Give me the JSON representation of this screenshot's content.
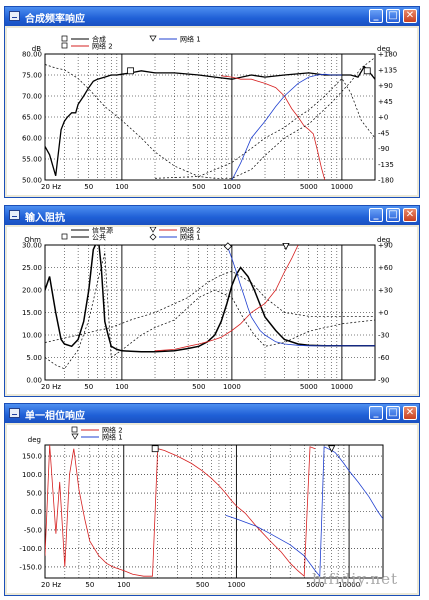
{
  "watermark": "hifidiy.net",
  "windows": [
    {
      "title": "合成频率响应",
      "buttons": [
        "minimize",
        "maximize",
        "close"
      ],
      "legend": [
        {
          "marker": "square",
          "label": "合成",
          "color": "#000000"
        },
        {
          "marker": "square",
          "label": "网络 2",
          "color": "#d62020"
        },
        {
          "marker": "triangle",
          "label": "网络 1",
          "color": "#2040d0"
        }
      ]
    },
    {
      "title": "输入阻抗",
      "buttons": [
        "minimize",
        "maximize",
        "close"
      ],
      "legend": [
        {
          "marker": "line",
          "label": "信号源",
          "color": "#000000"
        },
        {
          "marker": "square",
          "label": "公共",
          "color": "#000000"
        },
        {
          "marker": "triangle",
          "label": "网络 2",
          "color": "#d62020"
        },
        {
          "marker": "diamond",
          "label": "网络 1",
          "color": "#2040d0"
        }
      ]
    },
    {
      "title": "单一相位响应",
      "buttons": [
        "minimize",
        "maximize",
        "close"
      ],
      "legend": [
        {
          "marker": "square",
          "label": "网络 2",
          "color": "#d62020"
        },
        {
          "marker": "triangle",
          "label": "网络 1",
          "color": "#2040d0"
        }
      ]
    }
  ],
  "chart_data": [
    {
      "type": "line",
      "title": "合成频率响应",
      "xscale": "log",
      "xlim": [
        20,
        20000
      ],
      "xticks": [
        20,
        50,
        100,
        500,
        1000,
        5000,
        10000
      ],
      "xtick_labels": [
        "20 Hz",
        "50",
        "100",
        "500",
        "1000",
        "5000",
        "10000"
      ],
      "ylabel": "dB",
      "ylim": [
        50,
        80
      ],
      "yticks": [
        50,
        55,
        60,
        65,
        70,
        75,
        80
      ],
      "ytick_labels": [
        "50.00",
        "55.00",
        "60.00",
        "65.00",
        "70.00",
        "75.00",
        "80.00"
      ],
      "y2label": "deg",
      "y2lim": [
        -180,
        180
      ],
      "y2ticks": [
        -180,
        -135,
        -90,
        -45,
        0,
        45,
        90,
        135,
        180
      ],
      "y2tick_labels": [
        "-180",
        "-135",
        "-90",
        "-45",
        "+0",
        "+45",
        "+90",
        "+135",
        "+180"
      ],
      "grid": true,
      "series": [
        {
          "name": "合成",
          "color": "#000000",
          "style": "solid",
          "width": 1.3,
          "x": [
            20,
            22,
            25,
            28,
            30,
            32,
            35,
            38,
            40,
            45,
            50,
            55,
            60,
            70,
            80,
            90,
            100,
            120,
            150,
            200,
            300,
            500,
            700,
            1000,
            1500,
            2000,
            3000,
            5000,
            7000,
            10000,
            12000,
            14000,
            16000,
            18000,
            20000
          ],
          "y": [
            58,
            56,
            51,
            62,
            64,
            65,
            66,
            66,
            68,
            70,
            72,
            73.5,
            74,
            74.5,
            75,
            75,
            75.2,
            75.5,
            76,
            75.5,
            75.5,
            75,
            74.5,
            74,
            75,
            74.5,
            75,
            75.5,
            75,
            75,
            75,
            74.5,
            77,
            75.5,
            74
          ]
        },
        {
          "name": "网络 2",
          "color": "#d62020",
          "style": "solid",
          "width": 0.8,
          "x": [
            800,
            1000,
            1200,
            1500,
            2000,
            2500,
            3000,
            3500,
            4000,
            4500,
            5000,
            5500,
            6000,
            6500,
            7000
          ],
          "y": [
            74.8,
            74.5,
            74,
            74,
            73,
            72,
            70,
            67,
            65,
            63,
            62,
            61,
            57,
            53,
            50
          ]
        },
        {
          "name": "网络 1",
          "color": "#2040d0",
          "style": "solid",
          "width": 0.8,
          "x": [
            1000,
            1200,
            1500,
            2000,
            2500,
            3000,
            4000,
            5000,
            6000,
            7000,
            8000,
            10000
          ],
          "y": [
            50,
            54,
            60,
            64,
            67.5,
            70,
            73,
            74.5,
            75,
            75.2,
            75,
            75
          ]
        },
        {
          "name": "",
          "color": "#000000",
          "style": "dash",
          "width": 0.7,
          "axis": "y2",
          "x": [
            20,
            25,
            30,
            40,
            50,
            70,
            100,
            150,
            200,
            300,
            500,
            700,
            1000,
            1500,
            2000,
            3000,
            5000,
            8000,
            12000,
            15000,
            20000
          ],
          "y": [
            150,
            140,
            135,
            110,
            80,
            30,
            -10,
            -60,
            -100,
            -140,
            -170,
            -175,
            -175,
            -150,
            -110,
            -60,
            -20,
            40,
            100,
            140,
            170
          ]
        },
        {
          "name": "",
          "color": "#000000",
          "style": "dash",
          "width": 0.7,
          "axis": "y2",
          "x": [
            200,
            500,
            1000,
            1500,
            2000,
            3000,
            4000,
            5000,
            7000,
            10000,
            12000,
            15000,
            20000
          ],
          "y": [
            -175,
            -170,
            -130,
            -90,
            -60,
            -30,
            0,
            20,
            60,
            110,
            70,
            -10,
            -60
          ]
        }
      ],
      "markers": [
        {
          "series": "合成",
          "shape": "square",
          "x": 120,
          "y": 76
        },
        {
          "series": "网络 1",
          "shape": "square",
          "x": 17000,
          "y": 76
        }
      ]
    },
    {
      "type": "line",
      "title": "输入阻抗",
      "xscale": "log",
      "xlim": [
        20,
        20000
      ],
      "xticks": [
        20,
        50,
        100,
        500,
        1000,
        5000,
        10000
      ],
      "xtick_labels": [
        "20 Hz",
        "50",
        "100",
        "500",
        "1000",
        "5000",
        "10000"
      ],
      "ylabel": "Ohm",
      "ylim": [
        0,
        30
      ],
      "yticks": [
        0,
        5,
        10,
        15,
        20,
        25,
        30
      ],
      "ytick_labels": [
        "0.00",
        "5.00",
        "10.00",
        "15.00",
        "20.00",
        "25.00",
        "30.00"
      ],
      "y2label": "deg",
      "y2lim": [
        -90,
        90
      ],
      "y2ticks": [
        -90,
        -60,
        -30,
        0,
        30,
        60,
        90
      ],
      "y2tick_labels": [
        "-90",
        "-60",
        "-30",
        "+0",
        "+30",
        "+60",
        "+90"
      ],
      "grid": true,
      "series": [
        {
          "name": "公共",
          "color": "#000000",
          "style": "solid",
          "width": 1.5,
          "x": [
            20,
            22,
            25,
            28,
            30,
            35,
            40,
            45,
            50,
            55,
            60,
            62,
            65,
            70,
            75,
            80,
            90,
            100,
            120,
            150,
            200,
            300,
            400,
            500,
            600,
            700,
            800,
            900,
            1000,
            1100,
            1200,
            1400,
            1600,
            2000,
            2500,
            3000,
            4000,
            5000,
            7000,
            10000,
            15000,
            20000
          ],
          "y": [
            20,
            23,
            15,
            9,
            8,
            7.5,
            9,
            13,
            20,
            29,
            31,
            30,
            25,
            13,
            10,
            7.5,
            6.8,
            6.5,
            6.4,
            6.3,
            6.3,
            6.5,
            7,
            7.5,
            8.5,
            10,
            13,
            17,
            21,
            23.5,
            25,
            23,
            20,
            14,
            11,
            9,
            8,
            7.7,
            7.6,
            7.6,
            7.6,
            7.6
          ]
        },
        {
          "name": "网络 2",
          "color": "#d62020",
          "style": "solid",
          "width": 0.8,
          "x": [
            200,
            300,
            400,
            500,
            600,
            700,
            800,
            1000,
            1200,
            1500,
            2000,
            2500,
            3000,
            3500,
            4000
          ],
          "y": [
            6.5,
            6.8,
            7.5,
            8,
            8.5,
            9,
            9.5,
            11,
            12.5,
            15,
            17,
            20,
            24,
            27,
            30
          ]
        },
        {
          "name": "网络 1",
          "color": "#2040d0",
          "style": "solid",
          "width": 0.8,
          "x": [
            900,
            1000,
            1100,
            1200,
            1300,
            1400,
            1500,
            1800,
            2000,
            2500,
            3000,
            4000,
            5000,
            7000,
            10000,
            15000,
            20000
          ],
          "y": [
            30,
            27,
            24,
            21,
            18.5,
            16,
            14,
            11,
            10,
            8.5,
            8,
            7.7,
            7.6,
            7.6,
            7.6,
            7.6,
            7.6
          ]
        },
        {
          "name": "信号源",
          "color": "#000000",
          "style": "dash",
          "width": 0.7,
          "axis": "y2",
          "x": [
            20,
            25,
            30,
            40,
            50,
            60,
            70,
            80,
            100,
            150,
            200,
            300,
            500,
            700,
            1000,
            1300,
            1600,
            2000,
            3000,
            5000,
            10000,
            20000
          ],
          "y": [
            -60,
            -70,
            -75,
            -50,
            -10,
            40,
            80,
            -60,
            -50,
            -30,
            -20,
            -10,
            20,
            30,
            20,
            -10,
            -30,
            -45,
            -40,
            -25,
            -15,
            -10
          ]
        },
        {
          "name": "",
          "color": "#000000",
          "style": "dash",
          "width": 0.7,
          "axis": "y2",
          "x": [
            20,
            40,
            80,
            120,
            200,
            400,
            600,
            800,
            1000,
            1500,
            2000,
            3000,
            5000,
            10000,
            20000
          ],
          "y": [
            -40,
            -30,
            -20,
            -10,
            0,
            20,
            40,
            50,
            55,
            40,
            20,
            0,
            -5,
            -5,
            -5
          ]
        }
      ],
      "markers": [
        {
          "series": "网络 1",
          "shape": "diamond",
          "x": 920,
          "y": 29.7
        },
        {
          "series": "网络 2",
          "shape": "triangle",
          "x": 3100,
          "y": 29.7
        }
      ]
    },
    {
      "type": "line",
      "title": "单一相位响应",
      "xscale": "log",
      "xlim": [
        20,
        20000
      ],
      "xticks": [
        20,
        50,
        100,
        500,
        1000,
        5000,
        10000
      ],
      "xtick_labels": [
        "20 Hz",
        "50",
        "100",
        "500",
        "1000",
        "5000",
        "10000"
      ],
      "ylabel": "deg",
      "ylim": [
        -180,
        180
      ],
      "yticks": [
        -150,
        -100,
        -50,
        0,
        50,
        100,
        150
      ],
      "ytick_labels": [
        "-150.0",
        "-100.0",
        "-50.0",
        "0.0",
        "50.0",
        "100.0",
        "150.0"
      ],
      "grid": true,
      "series": [
        {
          "name": "网络 2",
          "color": "#d62020",
          "style": "solid",
          "width": 0.8,
          "x": [
            20,
            22,
            25,
            27,
            30,
            33,
            36,
            40,
            45,
            50,
            60,
            70,
            80,
            100,
            120,
            150,
            180,
            200,
            230,
            250,
            300,
            400,
            500,
            600,
            700,
            800,
            900,
            1000,
            1200,
            1500,
            2000,
            2500,
            3000,
            3500,
            4000,
            4500,
            5000
          ],
          "y": [
            -120,
            180,
            -60,
            80,
            -150,
            100,
            170,
            60,
            -20,
            -80,
            -120,
            -140,
            -150,
            -160,
            -170,
            -175,
            -175,
            170,
            165,
            160,
            150,
            130,
            110,
            90,
            70,
            50,
            30,
            15,
            -5,
            -40,
            -80,
            -110,
            -140,
            -160,
            -175,
            175,
            170
          ]
        },
        {
          "name": "网络 1",
          "color": "#2040d0",
          "style": "solid",
          "width": 0.8,
          "x": [
            800,
            1000,
            1500,
            2000,
            3000,
            4000,
            5000,
            5500,
            6000,
            6500,
            7000,
            7500,
            8000,
            9000,
            10000,
            12000,
            15000,
            18000,
            20000
          ],
          "y": [
            -10,
            -20,
            -40,
            -60,
            -90,
            -120,
            -160,
            -175,
            175,
            170,
            165,
            160,
            150,
            130,
            110,
            80,
            40,
            0,
            -20
          ]
        }
      ],
      "markers": [
        {
          "series": "网络 2",
          "shape": "square",
          "x": 190,
          "y": 170
        },
        {
          "series": "网络 1",
          "shape": "triangle",
          "x": 7000,
          "y": 170
        }
      ]
    }
  ]
}
